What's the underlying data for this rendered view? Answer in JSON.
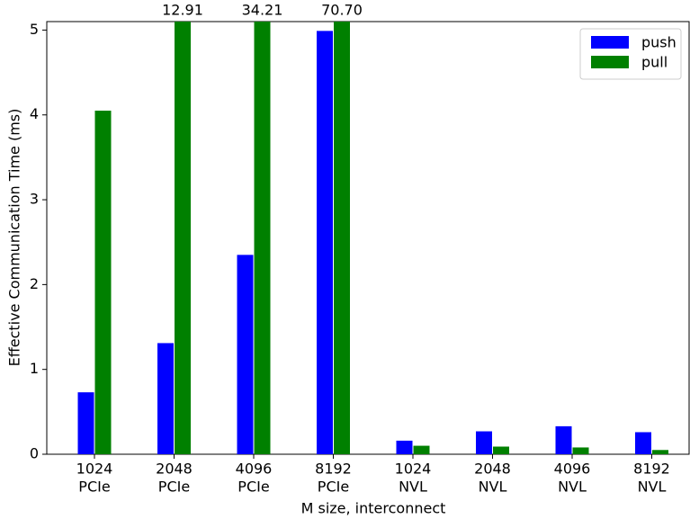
{
  "chart_data": {
    "type": "bar",
    "xlabel": "M size, interconnect",
    "ylabel": "Effective Communication Time (ms)",
    "categories": [
      [
        "1024",
        "PCIe"
      ],
      [
        "2048",
        "PCIe"
      ],
      [
        "4096",
        "PCIe"
      ],
      [
        "8192",
        "PCIe"
      ],
      [
        "1024",
        "NVL"
      ],
      [
        "2048",
        "NVL"
      ],
      [
        "4096",
        "NVL"
      ],
      [
        "8192",
        "NVL"
      ]
    ],
    "series": [
      {
        "name": "push",
        "color": "#0000ff",
        "values": [
          0.73,
          1.31,
          2.35,
          4.99,
          0.16,
          0.27,
          0.33,
          0.26
        ]
      },
      {
        "name": "pull",
        "color": "#008000",
        "values": [
          4.05,
          12.91,
          34.21,
          70.7,
          0.1,
          0.09,
          0.08,
          0.05
        ],
        "value_labels": [
          null,
          "12.91",
          "34.21",
          "70.70",
          null,
          null,
          null,
          null
        ]
      }
    ],
    "ylim": [
      0,
      5.1
    ],
    "yticks": [
      0,
      1,
      2,
      3,
      4,
      5
    ],
    "legend": "upper right"
  }
}
